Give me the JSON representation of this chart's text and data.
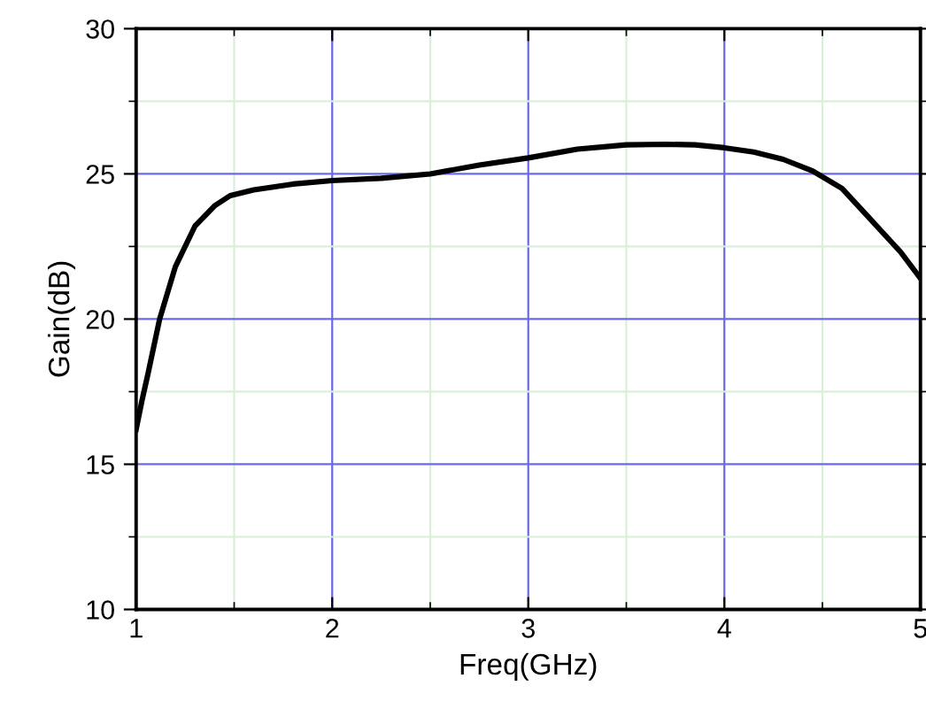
{
  "chart_data": {
    "type": "line",
    "xlabel": "Freq(GHz)",
    "ylabel": "Gain(dB)",
    "x": [
      1.0,
      1.03,
      1.06,
      1.12,
      1.2,
      1.3,
      1.4,
      1.48,
      1.6,
      1.8,
      2.0,
      2.25,
      2.5,
      2.75,
      3.0,
      3.25,
      3.5,
      3.7,
      3.85,
      4.0,
      4.15,
      4.3,
      4.45,
      4.6,
      4.75,
      4.9,
      5.0
    ],
    "series": [
      {
        "color": "#000000",
        "values": [
          16.2,
          17.2,
          18.1,
          20.0,
          21.8,
          23.2,
          23.9,
          24.25,
          24.45,
          24.65,
          24.77,
          24.85,
          25.0,
          25.3,
          25.55,
          25.85,
          26.0,
          26.02,
          26.0,
          25.9,
          25.75,
          25.5,
          25.1,
          24.5,
          23.4,
          22.3,
          21.4
        ]
      }
    ],
    "xlim": [
      1,
      5
    ],
    "ylim": [
      10,
      30
    ],
    "xticks": [
      1,
      {
        "value": 1.5,
        "label": null
      },
      2,
      {
        "value": 2.5,
        "label": null
      },
      3,
      {
        "value": 3.5,
        "label": null
      },
      4,
      {
        "value": 4.5,
        "label": null
      },
      5
    ],
    "yticks": [
      10,
      {
        "value": 12.5,
        "label": null
      },
      15,
      {
        "value": 17.5,
        "label": null
      },
      20,
      {
        "value": 22.5,
        "label": null
      },
      25,
      {
        "value": 27.5,
        "label": null
      },
      30
    ],
    "grid": true,
    "marker": "none",
    "line_style": "solid",
    "legend": false
  }
}
